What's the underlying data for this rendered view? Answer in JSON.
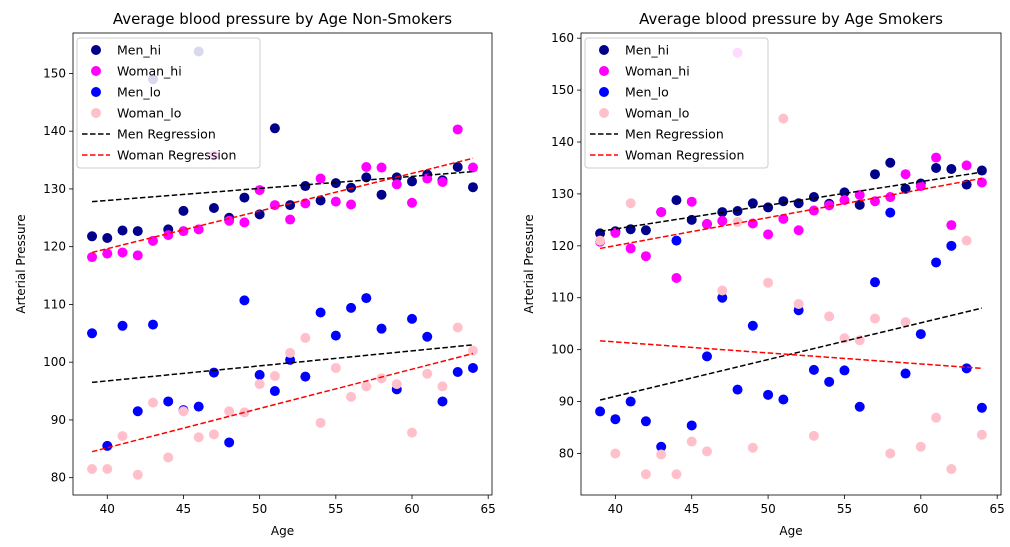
{
  "colors": {
    "Men_hi": "#00008b",
    "Woman_hi": "#ff00ff",
    "Men_lo": "#0000ff",
    "Woman_lo": "#ffc0cb",
    "Men Regression": "#000000",
    "Woman Regression": "#ff0000"
  },
  "chart_data": [
    {
      "type": "scatter",
      "title": "Average blood pressure by Age Non-Smokers",
      "xlabel": "Age",
      "ylabel": "Arterial Pressure",
      "xlim": [
        37.75,
        65.25
      ],
      "ylim": [
        77,
        157
      ],
      "xticks": [
        40,
        45,
        50,
        55,
        60,
        65
      ],
      "yticks": [
        80,
        90,
        100,
        110,
        120,
        130,
        140,
        150
      ],
      "legend_position": "top-left",
      "grid": false,
      "series": [
        {
          "name": "Men_hi",
          "x": [
            39,
            40,
            41,
            42,
            43,
            44,
            45,
            46,
            47,
            48,
            49,
            50,
            51,
            52,
            53,
            54,
            55,
            56,
            57,
            58,
            59,
            60,
            61,
            62,
            63,
            64
          ],
          "y": [
            121.8,
            121.5,
            122.8,
            122.7,
            149.0,
            123.0,
            126.2,
            153.8,
            126.7,
            125.0,
            128.5,
            125.6,
            140.5,
            127.2,
            130.5,
            128.0,
            131.0,
            130.2,
            132.0,
            129.0,
            132.0,
            131.3,
            132.5,
            131.5,
            133.8,
            130.3
          ]
        },
        {
          "name": "Woman_hi",
          "x": [
            39,
            40,
            41,
            42,
            43,
            44,
            45,
            46,
            47,
            48,
            49,
            50,
            51,
            52,
            53,
            54,
            55,
            56,
            57,
            58,
            59,
            60,
            61,
            62,
            63,
            64
          ],
          "y": [
            118.2,
            118.8,
            119.0,
            118.5,
            121.0,
            122.0,
            122.7,
            123.0,
            135.8,
            124.5,
            124.2,
            129.8,
            127.2,
            124.7,
            127.5,
            131.8,
            127.8,
            127.3,
            133.8,
            133.7,
            130.8,
            127.6,
            131.8,
            131.2,
            140.3,
            133.7
          ]
        },
        {
          "name": "Men_lo",
          "x": [
            39,
            40,
            41,
            42,
            43,
            44,
            45,
            46,
            47,
            48,
            49,
            50,
            51,
            52,
            53,
            54,
            55,
            56,
            57,
            58,
            59,
            60,
            61,
            62,
            63,
            64
          ],
          "y": [
            105.0,
            85.5,
            106.3,
            91.5,
            106.5,
            93.2,
            91.7,
            92.3,
            98.2,
            86.1,
            110.7,
            97.8,
            95.0,
            100.4,
            97.5,
            108.6,
            104.6,
            109.4,
            111.1,
            105.8,
            95.3,
            107.5,
            104.4,
            93.2,
            98.3,
            99.0
          ]
        },
        {
          "name": "Woman_lo",
          "x": [
            39,
            40,
            41,
            42,
            43,
            44,
            45,
            46,
            47,
            48,
            49,
            50,
            51,
            52,
            53,
            54,
            55,
            56,
            57,
            58,
            59,
            60,
            61,
            62,
            63,
            64
          ],
          "y": [
            81.5,
            81.5,
            87.2,
            80.5,
            93.0,
            83.5,
            91.5,
            87.0,
            87.5,
            91.5,
            91.3,
            96.2,
            97.6,
            101.6,
            104.2,
            89.5,
            99.0,
            94.0,
            95.8,
            97.2,
            96.2,
            87.8,
            98.0,
            95.8,
            106.0,
            102.0
          ]
        }
      ],
      "regressions": [
        {
          "name": "Men Regression",
          "x": [
            39,
            64
          ],
          "y": [
            127.8,
            133.0
          ]
        },
        {
          "name": "Woman Regression",
          "x": [
            39,
            64
          ],
          "y": [
            119.0,
            135.3
          ]
        },
        {
          "name": "Men Regression",
          "x": [
            39,
            64
          ],
          "y": [
            96.5,
            103.0
          ]
        },
        {
          "name": "Woman Regression",
          "x": [
            39,
            64
          ],
          "y": [
            84.5,
            101.5
          ]
        }
      ]
    },
    {
      "type": "scatter",
      "title": "Average blood pressure by Age Smokers",
      "xlabel": "Age",
      "ylabel": "Arterial Pressure",
      "xlim": [
        37.75,
        65.25
      ],
      "ylim": [
        72,
        161
      ],
      "xticks": [
        40,
        45,
        50,
        55,
        60,
        65
      ],
      "yticks": [
        80,
        90,
        100,
        110,
        120,
        130,
        140,
        150,
        160
      ],
      "legend_position": "top-left",
      "grid": false,
      "series": [
        {
          "name": "Men_hi",
          "x": [
            39,
            40,
            41,
            42,
            43,
            44,
            45,
            46,
            47,
            48,
            49,
            50,
            51,
            52,
            53,
            54,
            55,
            56,
            57,
            58,
            59,
            60,
            61,
            62,
            63,
            64
          ],
          "y": [
            122.4,
            122.8,
            123.2,
            123.0,
            126.5,
            128.8,
            125.0,
            124.2,
            126.5,
            126.7,
            128.2,
            127.4,
            128.6,
            128.2,
            129.4,
            128.1,
            130.3,
            127.9,
            133.8,
            136.0,
            131.0,
            132.0,
            135.0,
            134.8,
            131.8,
            134.5
          ]
        },
        {
          "name": "Woman_hi",
          "x": [
            39,
            40,
            41,
            42,
            43,
            44,
            45,
            46,
            47,
            48,
            49,
            50,
            51,
            52,
            53,
            54,
            55,
            56,
            57,
            58,
            59,
            60,
            61,
            62,
            63,
            64
          ],
          "y": [
            120.8,
            122.5,
            119.5,
            118.0,
            126.5,
            113.8,
            128.5,
            124.2,
            124.8,
            157.2,
            124.3,
            122.2,
            125.2,
            123.0,
            126.8,
            127.8,
            128.8,
            129.8,
            128.6,
            129.4,
            133.8,
            131.5,
            137.0,
            124.0,
            135.5,
            132.2
          ]
        },
        {
          "name": "Men_lo",
          "x": [
            39,
            40,
            41,
            42,
            43,
            44,
            45,
            46,
            47,
            48,
            49,
            50,
            51,
            52,
            53,
            54,
            55,
            56,
            57,
            58,
            59,
            60,
            61,
            62,
            63,
            64
          ],
          "y": [
            88.1,
            86.6,
            90.0,
            86.2,
            81.3,
            121.0,
            85.4,
            98.7,
            110.0,
            92.3,
            104.6,
            91.3,
            90.4,
            107.6,
            96.1,
            93.8,
            96.0,
            89.0,
            113.0,
            126.4,
            95.4,
            103.0,
            116.8,
            120.0,
            96.4,
            88.8
          ]
        },
        {
          "name": "Woman_lo",
          "x": [
            39,
            40,
            41,
            42,
            43,
            44,
            45,
            46,
            47,
            48,
            49,
            50,
            51,
            52,
            53,
            54,
            55,
            56,
            57,
            58,
            59,
            60,
            61,
            62,
            63,
            64
          ],
          "y": [
            121.0,
            80.0,
            128.2,
            76.0,
            79.8,
            76.0,
            82.3,
            80.4,
            111.4,
            124.6,
            81.1,
            112.9,
            144.5,
            108.8,
            83.4,
            106.4,
            102.2,
            101.8,
            106.0,
            80.0,
            105.3,
            81.3,
            86.9,
            77.0,
            121.0,
            83.6
          ]
        }
      ],
      "regressions": [
        {
          "name": "Men Regression",
          "x": [
            39,
            64
          ],
          "y": [
            122.8,
            134.2
          ]
        },
        {
          "name": "Woman Regression",
          "x": [
            39,
            64
          ],
          "y": [
            119.5,
            133.0
          ]
        },
        {
          "name": "Men Regression",
          "x": [
            39,
            64
          ],
          "y": [
            90.3,
            108.0
          ]
        },
        {
          "name": "Woman Regression",
          "x": [
            39,
            64
          ],
          "y": [
            101.7,
            96.4
          ]
        }
      ]
    }
  ]
}
